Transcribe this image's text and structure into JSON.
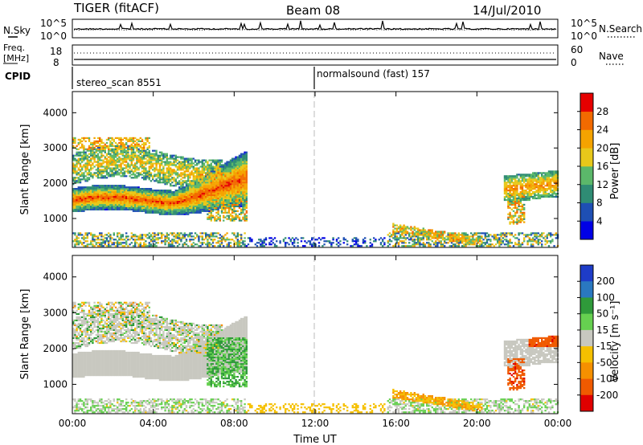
{
  "header": {
    "title": "TIGER (fitACF)",
    "beam": "Beam 08",
    "date": "14/Jul/2010"
  },
  "noise_panel": {
    "left_label": "N.Sky",
    "right_label": "N.Search",
    "left_ticks": [
      "10^5",
      "10^0"
    ],
    "right_ticks": [
      "10^5",
      "10^0"
    ]
  },
  "freq_panel": {
    "left_label_top": "Freq.",
    "left_label_bottom": "[MHz]",
    "left_ticks": [
      "18",
      "8"
    ],
    "right_label": "Nave",
    "right_ticks": [
      "60",
      "0"
    ]
  },
  "cpid": {
    "label": "CPID",
    "segments": [
      {
        "name": "stereo_scan 8551",
        "start_hour": 0
      },
      {
        "name": "normalsound (fast) 157",
        "start_hour": 12
      }
    ]
  },
  "chart_data": [
    {
      "type": "heatmap",
      "name": "power",
      "xlabel": "",
      "ylabel": "Slant Range [km]",
      "x_range_hours": [
        0,
        24
      ],
      "ylim": [
        180,
        4600
      ],
      "yticks": [
        1000,
        2000,
        3000,
        4000
      ],
      "colorbar": {
        "label": "Power [dB]",
        "ticks": [
          4,
          8,
          12,
          16,
          20,
          24,
          28
        ],
        "range": [
          0,
          32
        ],
        "colors": [
          "#0000e6",
          "#1e4fb4",
          "#2f8c74",
          "#5bb86a",
          "#e8c81a",
          "#f5a300",
          "#f26a00",
          "#e60000"
        ]
      }
    },
    {
      "type": "heatmap",
      "name": "velocity",
      "xlabel": "Time UT",
      "ylabel": "Slant Range [km]",
      "x_range_hours": [
        0,
        24
      ],
      "xticks": [
        "00:00",
        "04:00",
        "08:00",
        "12:00",
        "16:00",
        "20:00",
        "00:00"
      ],
      "ylim": [
        180,
        4600
      ],
      "yticks": [
        1000,
        2000,
        3000,
        4000
      ],
      "colorbar": {
        "label": "Velocity [m s⁻¹]",
        "ticks": [
          "200",
          "100",
          "50",
          "15",
          "-15",
          "-50",
          "-100",
          "-200"
        ],
        "colors": [
          "#1e3cc8",
          "#2a78c0",
          "#2f9a3a",
          "#66d050",
          "#c8c8c0",
          "#f5c000",
          "#f59000",
          "#f05a00",
          "#e00000"
        ]
      }
    }
  ]
}
